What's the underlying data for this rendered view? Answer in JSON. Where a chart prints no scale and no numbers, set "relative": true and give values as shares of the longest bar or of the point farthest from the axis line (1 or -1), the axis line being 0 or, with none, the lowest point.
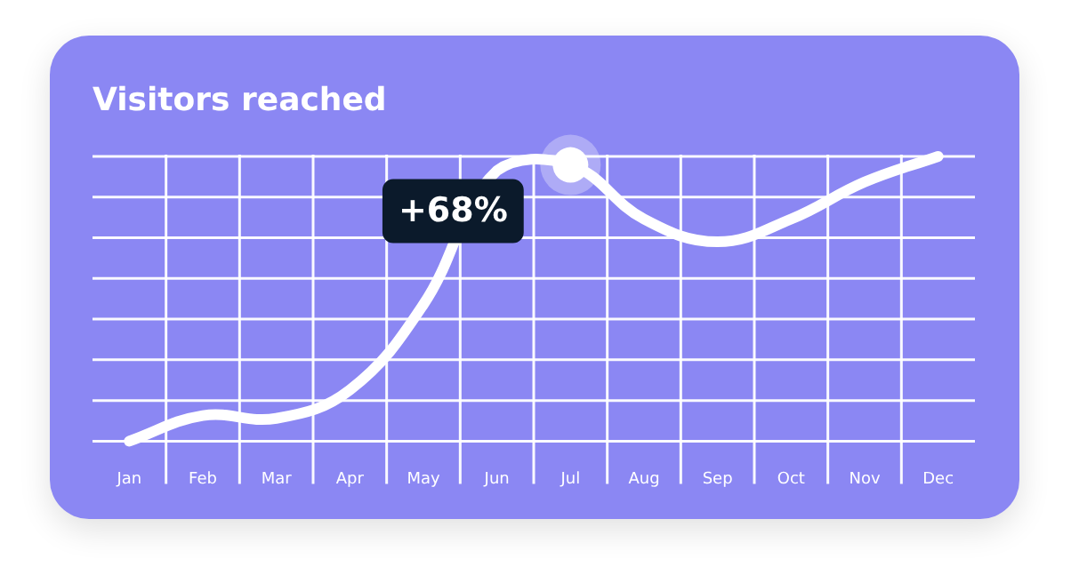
{
  "chart_data": {
    "type": "line",
    "title": "Visitors reached",
    "relative": true,
    "categories": [
      "Jan",
      "Feb",
      "Mar",
      "Apr",
      "May",
      "Jun",
      "Jul",
      "Aug",
      "Sep",
      "Oct",
      "Nov",
      "Dec"
    ],
    "series": [
      {
        "color": "#ffffff",
        "values": [
          0,
          0.09,
          0.08,
          0.18,
          0.48,
          0.95,
          0.97,
          0.78,
          0.7,
          0.78,
          0.91,
          1
        ]
      }
    ],
    "annotations": [
      {
        "text": "+68%",
        "x": "Jul",
        "y": 0.97
      }
    ],
    "grid": true,
    "legend": false,
    "marker": "none",
    "line_style": "solid"
  }
}
